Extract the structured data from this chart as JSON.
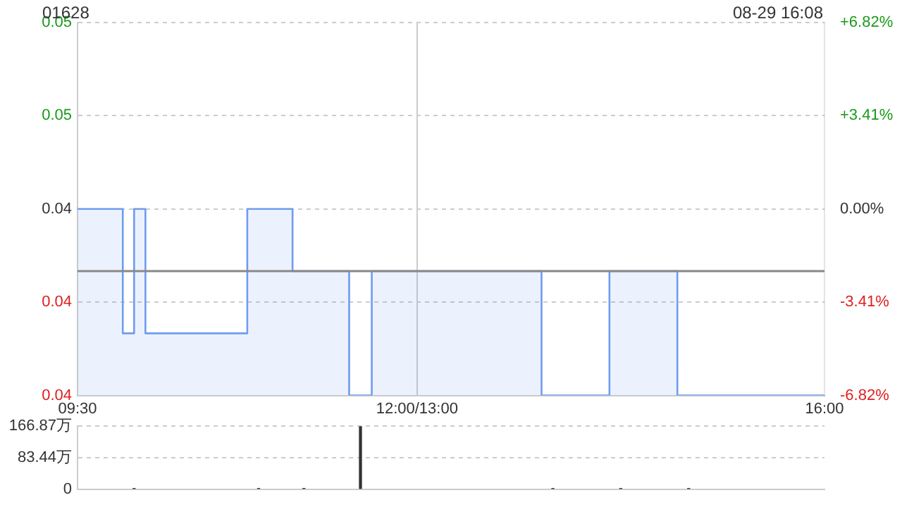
{
  "chart_data": [
    {
      "type": "step",
      "title": "01628",
      "annotations": [
        "08-29 16:08"
      ],
      "categories": [
        "09:30",
        null,
        null,
        null,
        null,
        null,
        null,
        null,
        null,
        null,
        null,
        null,
        null,
        null,
        null,
        null,
        null,
        null,
        null,
        null,
        null,
        null,
        null,
        null,
        null,
        null,
        null,
        null,
        null,
        null,
        "12:00/13:00",
        null,
        null,
        null,
        null,
        null,
        null,
        null,
        null,
        null,
        null,
        null,
        null,
        null,
        null,
        null,
        null,
        null,
        null,
        null,
        null,
        null,
        null,
        null,
        null,
        null,
        null,
        null,
        null,
        null,
        null,
        null,
        null,
        null,
        null,
        null,
        "16:00"
      ],
      "series": [
        {
          "color": "#6f9cf0",
          "values": [
            0.044,
            0.044,
            0.044,
            0.044,
            0.044,
            0.042,
            0.044,
            0.042,
            0.042,
            0.042,
            0.042,
            0.042,
            0.042,
            0.042,
            0.042,
            0.042,
            0.044,
            0.044,
            0.044,
            0.044,
            0.043,
            0.043,
            0.043,
            0.043,
            0.043,
            0.041,
            0.041,
            0.043,
            0.043,
            0.043,
            0.043,
            0.043,
            0.043,
            0.043,
            0.043,
            0.043,
            0.043,
            0.043,
            0.043,
            0.043,
            0.043,
            0.043,
            0.041,
            0.041,
            0.041,
            0.041,
            0.041,
            0.041,
            0.043,
            0.043,
            0.043,
            0.043,
            0.043,
            0.043,
            0.041,
            0.041,
            0.041,
            0.041,
            0.041,
            0.041,
            0.041,
            0.041,
            0.041,
            0.041,
            0.041,
            0.041,
            0.041
          ]
        }
      ],
      "ylim": [
        0.041,
        0.047
      ],
      "yticks": [
        {
          "value": 0.041,
          "label": "0.04"
        },
        {
          "value": 0.0425,
          "label": "0.04"
        },
        {
          "value": 0.044,
          "label": "0.04"
        },
        {
          "value": 0.0455,
          "label": "0.05"
        },
        {
          "value": 0.047,
          "label": "0.05"
        }
      ],
      "y2lim": [
        -6.82,
        6.82
      ],
      "y2ticks": [
        {
          "value": -6.82,
          "label": "-6.82%"
        },
        {
          "value": -3.41,
          "label": "-3.41%"
        },
        {
          "value": 0,
          "label": "0.00%"
        },
        {
          "value": 3.41,
          "label": "+3.41%"
        },
        {
          "value": 6.82,
          "label": "+6.82%"
        }
      ],
      "ref_lines": [
        {
          "axis": "y",
          "value": 0.043,
          "color": "#888888"
        }
      ],
      "grid": true,
      "legend": false
    },
    {
      "type": "bar",
      "categories": [
        null,
        null,
        null,
        null,
        null,
        null,
        null,
        null,
        null,
        null,
        null,
        null,
        null,
        null,
        null,
        null,
        null,
        null,
        null,
        null,
        null,
        null,
        null,
        null,
        null,
        null,
        null,
        null,
        null,
        null,
        null,
        null,
        null,
        null,
        null,
        null,
        null,
        null,
        null,
        null,
        null,
        null,
        null,
        null,
        null,
        null,
        null,
        null,
        null,
        null,
        null,
        null,
        null,
        null,
        null,
        null,
        null,
        null,
        null,
        null,
        null,
        null,
        null,
        null,
        null,
        null,
        null
      ],
      "series": [
        {
          "color": "#333333",
          "values": [
            null,
            null,
            null,
            null,
            null,
            2,
            null,
            null,
            null,
            null,
            null,
            null,
            null,
            null,
            null,
            null,
            2,
            null,
            null,
            null,
            2,
            null,
            null,
            null,
            null,
            166.87,
            null,
            null,
            null,
            null,
            null,
            null,
            null,
            null,
            null,
            null,
            null,
            null,
            null,
            null,
            null,
            null,
            2,
            null,
            null,
            null,
            null,
            null,
            2,
            null,
            null,
            null,
            null,
            null,
            2,
            null,
            null,
            null,
            null,
            null,
            null,
            null,
            null,
            null,
            null,
            null,
            null
          ]
        }
      ],
      "ylim": [
        0,
        166.87
      ],
      "yticks": [
        0,
        {
          "value": 83.44,
          "label": "83.44万"
        },
        {
          "value": 166.87,
          "label": "166.87万"
        }
      ],
      "tick_labels": "y",
      "grid": true,
      "legend": false
    }
  ]
}
